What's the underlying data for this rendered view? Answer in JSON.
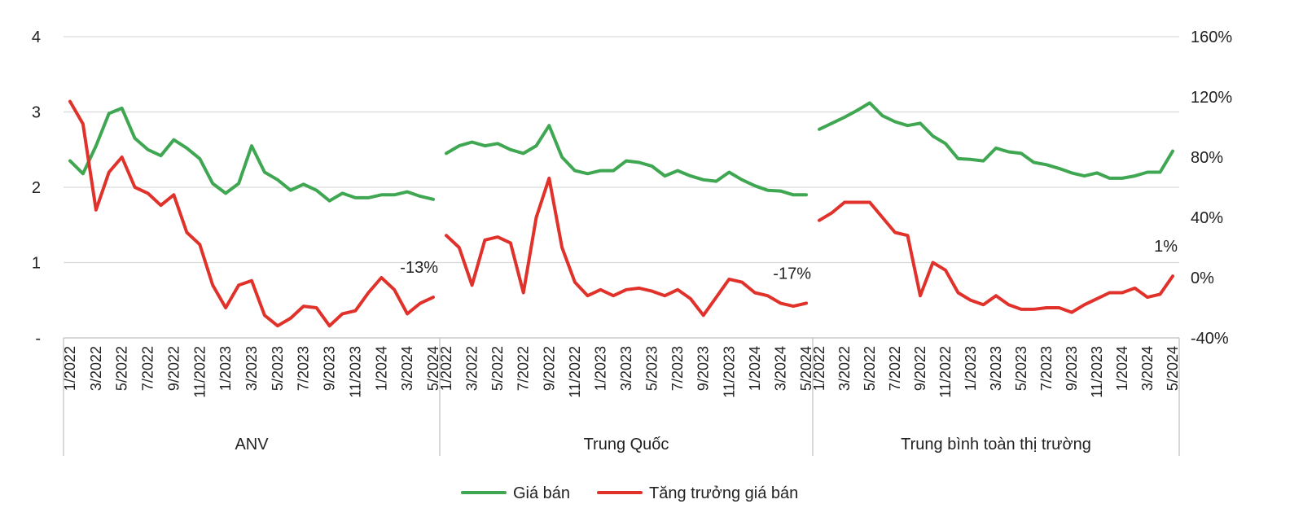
{
  "chart_data": {
    "type": "line",
    "title": "",
    "groups": [
      {
        "name": "ANV",
        "x": [
          "1/2022",
          "2/2022",
          "3/2022",
          "4/2022",
          "5/2022",
          "6/2022",
          "7/2022",
          "8/2022",
          "9/2022",
          "10/2022",
          "11/2022",
          "12/2022",
          "1/2023",
          "2/2023",
          "3/2023",
          "4/2023",
          "5/2023",
          "6/2023",
          "7/2023",
          "8/2023",
          "9/2023",
          "10/2023",
          "11/2023",
          "12/2023",
          "1/2024",
          "2/2024",
          "3/2024",
          "4/2024",
          "5/2024"
        ],
        "x_tick_labels": [
          "1/2022",
          "3/2022",
          "5/2022",
          "7/2022",
          "9/2022",
          "11/2022",
          "1/2023",
          "3/2023",
          "5/2023",
          "7/2023",
          "9/2023",
          "11/2023",
          "1/2024",
          "3/2024",
          "5/2024"
        ],
        "gia_ban": [
          2.35,
          2.18,
          2.55,
          2.98,
          3.05,
          2.65,
          2.5,
          2.42,
          2.63,
          2.52,
          2.38,
          2.05,
          1.92,
          2.05,
          2.55,
          2.2,
          2.1,
          1.96,
          2.04,
          1.96,
          1.82,
          1.92,
          1.86,
          1.86,
          1.9,
          1.9,
          1.94,
          1.88,
          1.84
        ],
        "tang_truong": [
          1.17,
          1.02,
          0.45,
          0.7,
          0.8,
          0.6,
          0.56,
          0.48,
          0.55,
          0.3,
          0.22,
          -0.05,
          -0.2,
          -0.05,
          -0.02,
          -0.25,
          -0.32,
          -0.27,
          -0.19,
          -0.2,
          -0.32,
          -0.24,
          -0.22,
          -0.1,
          0.0,
          -0.08,
          -0.24,
          -0.17,
          -0.13
        ],
        "annotation": "-13%"
      },
      {
        "name": "Trung Quốc",
        "x": [
          "1/2022",
          "2/2022",
          "3/2022",
          "4/2022",
          "5/2022",
          "6/2022",
          "7/2022",
          "8/2022",
          "9/2022",
          "10/2022",
          "11/2022",
          "12/2022",
          "1/2023",
          "2/2023",
          "3/2023",
          "4/2023",
          "5/2023",
          "6/2023",
          "7/2023",
          "8/2023",
          "9/2023",
          "10/2023",
          "11/2023",
          "12/2023",
          "1/2024",
          "2/2024",
          "3/2024",
          "4/2024",
          "5/2024"
        ],
        "x_tick_labels": [
          "1/2022",
          "3/2022",
          "5/2022",
          "7/2022",
          "9/2022",
          "11/2022",
          "1/2023",
          "3/2023",
          "5/2023",
          "7/2023",
          "9/2023",
          "11/2023",
          "1/2024",
          "3/2024",
          "5/2024"
        ],
        "gia_ban": [
          2.45,
          2.55,
          2.6,
          2.55,
          2.58,
          2.5,
          2.45,
          2.55,
          2.82,
          2.4,
          2.22,
          2.18,
          2.22,
          2.22,
          2.35,
          2.33,
          2.28,
          2.15,
          2.22,
          2.15,
          2.1,
          2.08,
          2.2,
          2.1,
          2.02,
          1.96,
          1.95,
          1.9,
          1.9
        ],
        "tang_truong": [
          0.28,
          0.2,
          -0.05,
          0.25,
          0.27,
          0.23,
          -0.1,
          0.4,
          0.66,
          0.2,
          -0.03,
          -0.12,
          -0.08,
          -0.12,
          -0.08,
          -0.07,
          -0.09,
          -0.12,
          -0.08,
          -0.14,
          -0.25,
          -0.13,
          -0.01,
          -0.03,
          -0.1,
          -0.12,
          -0.17,
          -0.19,
          -0.17
        ],
        "annotation": "-17%"
      },
      {
        "name": "Trung bình toàn thị trường",
        "x": [
          "1/2022",
          "2/2022",
          "3/2022",
          "4/2022",
          "5/2022",
          "6/2022",
          "7/2022",
          "8/2022",
          "9/2022",
          "10/2022",
          "11/2022",
          "12/2022",
          "1/2023",
          "2/2023",
          "3/2023",
          "4/2023",
          "5/2023",
          "6/2023",
          "7/2023",
          "8/2023",
          "9/2023",
          "10/2023",
          "11/2023",
          "12/2023",
          "1/2024",
          "2/2024",
          "3/2024",
          "4/2024",
          "5/2024"
        ],
        "x_tick_labels": [
          "1/2022",
          "3/2022",
          "5/2022",
          "7/2022",
          "9/2022",
          "11/2022",
          "1/2023",
          "3/2023",
          "5/2023",
          "7/2023",
          "9/2023",
          "11/2023",
          "1/2024",
          "3/2024",
          "5/2024"
        ],
        "gia_ban": [
          2.77,
          2.85,
          2.93,
          3.02,
          3.12,
          2.95,
          2.87,
          2.82,
          2.85,
          2.68,
          2.58,
          2.38,
          2.37,
          2.35,
          2.52,
          2.47,
          2.45,
          2.33,
          2.3,
          2.25,
          2.19,
          2.15,
          2.19,
          2.12,
          2.12,
          2.15,
          2.2,
          2.2,
          2.48
        ],
        "tang_truong": [
          0.38,
          0.43,
          0.5,
          0.5,
          0.5,
          0.4,
          0.3,
          0.28,
          -0.12,
          0.1,
          0.05,
          -0.1,
          -0.15,
          -0.18,
          -0.12,
          -0.18,
          -0.21,
          -0.21,
          -0.2,
          -0.2,
          -0.23,
          -0.18,
          -0.14,
          -0.1,
          -0.1,
          -0.07,
          -0.13,
          -0.11,
          0.01
        ],
        "annotation": "1%"
      }
    ],
    "y_left": {
      "min": 0,
      "max": 4,
      "ticks": [
        0,
        1,
        2,
        3,
        4
      ],
      "tick_labels": [
        "-",
        "1",
        "2",
        "3",
        "4"
      ]
    },
    "y_right": {
      "min": -0.4,
      "max": 1.6,
      "ticks": [
        -0.4,
        0,
        0.4,
        0.8,
        1.2,
        1.6
      ],
      "tick_labels": [
        "-40%",
        "0%",
        "40%",
        "80%",
        "120%",
        "160%"
      ]
    },
    "series": [
      {
        "name": "Giá bán",
        "key": "gia_ban",
        "axis": "left",
        "color": "#3fa652"
      },
      {
        "name": "Tăng trưởng giá bán",
        "key": "tang_truong",
        "axis": "right",
        "color": "#e0312b"
      }
    ],
    "grid": true,
    "legend_position": "bottom"
  }
}
